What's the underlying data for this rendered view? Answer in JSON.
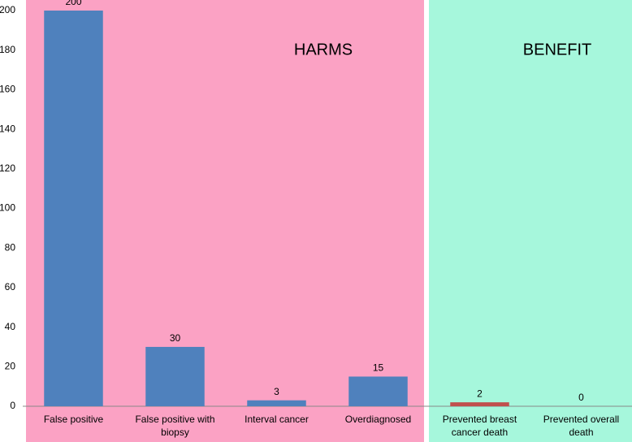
{
  "chart_data": {
    "type": "bar",
    "annotations": [
      "HARMS",
      "BENEFIT"
    ],
    "categories": [
      "False positive",
      "False positive with biopsy",
      "Interval cancer",
      "Overdiagnosed",
      "Prevented breast cancer death",
      "Prevented overall death"
    ],
    "values": [
      200,
      30,
      3,
      15,
      2,
      0
    ],
    "colors": [
      "#4f81bd",
      "#4f81bd",
      "#4f81bd",
      "#4f81bd",
      "#c0504d",
      "#4f81bd"
    ],
    "ylim": [
      0,
      200
    ],
    "yticks": [
      0,
      20,
      40,
      60,
      80,
      100,
      120,
      140,
      160,
      180,
      200
    ],
    "grid": false
  }
}
